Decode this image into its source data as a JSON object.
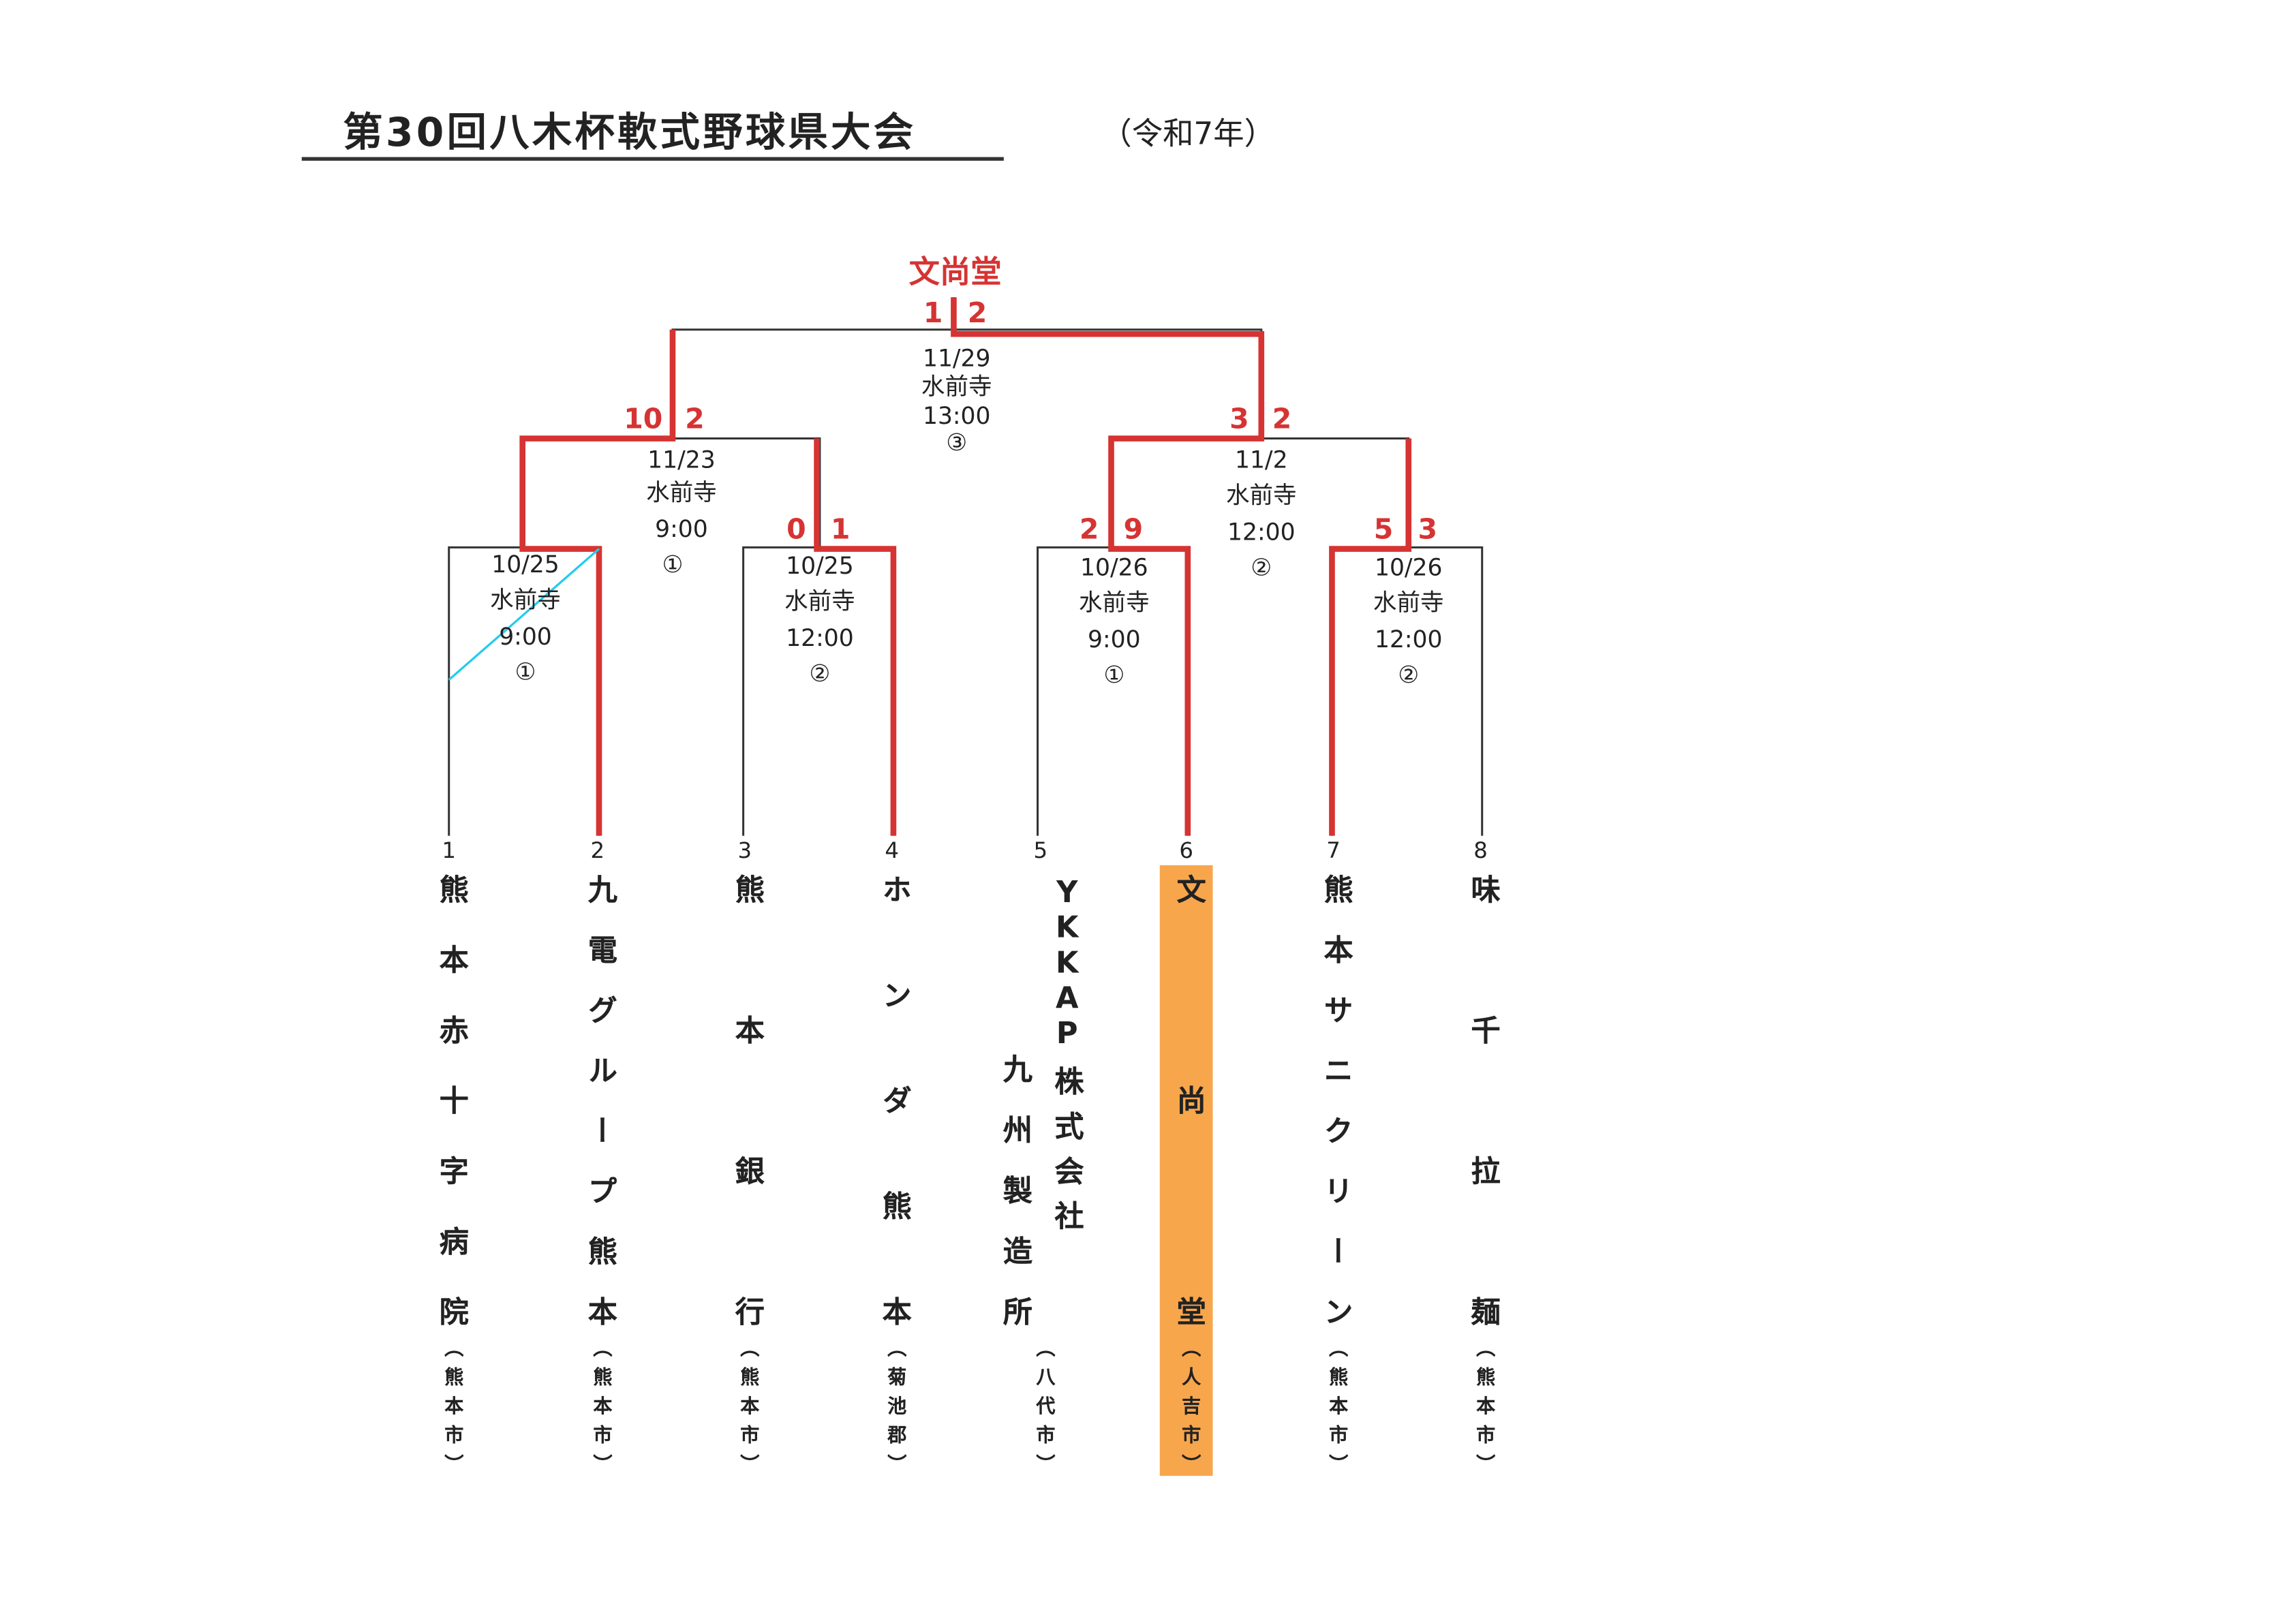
{
  "title": "第30回八木杯軟式野球県大会",
  "year_note": "（令和7年）",
  "champion": "文尚堂",
  "colors": {
    "winner_line": "#d63333",
    "champion_highlight": "#f8a64c",
    "annotation_line": "#22ccee"
  },
  "matches": [
    {
      "id": "final",
      "date": "11/29",
      "venue": "水前寺",
      "time": "13:00",
      "field": "③",
      "score_left": "1",
      "score_right": "2"
    },
    {
      "id": "semi1",
      "date": "11/23",
      "venue": "水前寺",
      "time": "9:00",
      "field": "①",
      "score_left": "10",
      "score_right": "2"
    },
    {
      "id": "semi2",
      "date": "11/2",
      "venue": "水前寺",
      "time": "12:00",
      "field": "②",
      "score_left": "3",
      "score_right": "2"
    },
    {
      "id": "qf1",
      "date": "10/25",
      "venue": "水前寺",
      "time": "9:00",
      "field": "①",
      "score_left": "",
      "score_right": ""
    },
    {
      "id": "qf2",
      "date": "10/25",
      "venue": "水前寺",
      "time": "12:00",
      "field": "②",
      "score_left": "0",
      "score_right": "1"
    },
    {
      "id": "qf3",
      "date": "10/26",
      "venue": "水前寺",
      "time": "9:00",
      "field": "①",
      "score_left": "2",
      "score_right": "9"
    },
    {
      "id": "qf4",
      "date": "10/26",
      "venue": "水前寺",
      "time": "12:00",
      "field": "②",
      "score_left": "5",
      "score_right": "3"
    }
  ],
  "teams": [
    {
      "number": "1",
      "name": "熊本赤十字病院",
      "city": "（熊本市）"
    },
    {
      "number": "2",
      "name": "九電グループ熊本",
      "city": "（熊本市）"
    },
    {
      "number": "3",
      "name": "熊本銀行",
      "city": "（熊本市）"
    },
    {
      "number": "4",
      "name": "ホンダ熊本",
      "city": "（菊池郡）"
    },
    {
      "number": "5",
      "name": "YKKAP株式会社",
      "name_line2": "九州製造所",
      "city": "（八代市）"
    },
    {
      "number": "6",
      "name": "文尚堂",
      "city": "（人吉市）",
      "highlighted": true
    },
    {
      "number": "7",
      "name": "熊本サニクリーン",
      "city": "（熊本市）"
    },
    {
      "number": "8",
      "name": "味千拉麺",
      "city": "（熊本市）"
    }
  ]
}
